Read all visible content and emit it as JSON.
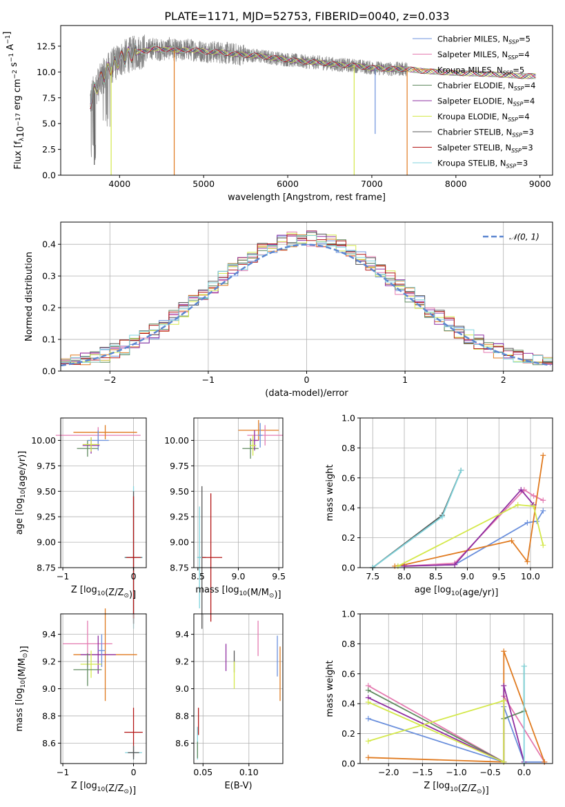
{
  "figure_title": "PLATE=1171, MJD=52753, FIBERID=0040, z=0.033",
  "colors": {
    "chabrier_miles": "#6a8fdc",
    "salpeter_miles": "#e47ab0",
    "kroupa_miles": "#e07a1f",
    "chabrier_elodie": "#5f8a5f",
    "salpeter_elodie": "#8e2ca0",
    "kroupa_elodie": "#d4e84a",
    "chabrier_stelib": "#555555",
    "salpeter_stelib": "#b31515",
    "kroupa_stelib": "#7fd3dc",
    "data": "#808080",
    "gaussian": "#5b86d0"
  },
  "chart_data": [
    {
      "id": "spectrum",
      "type": "line",
      "xlabel": "wavelength [Angstrom, rest frame]",
      "ylabel": "Flux [f_λ10^-17 erg cm^-2 s^-1 A^-1]",
      "xlim": [
        3300,
        9150
      ],
      "ylim": [
        0,
        14.5
      ],
      "xticks": [
        4000,
        5000,
        6000,
        7000,
        8000,
        9000
      ],
      "yticks": [
        0.0,
        2.5,
        5.0,
        7.5,
        10.0,
        12.5
      ],
      "ytick_labels": [
        "0.0",
        "2.5",
        "5.0",
        "7.5",
        "10.0",
        "12.5"
      ],
      "legend_position": "top-right",
      "legend": [
        {
          "label": "Chabrier MILES, N",
          "sub": "SSP",
          "suffix": "=5",
          "color": "#6a8fdc"
        },
        {
          "label": "Salpeter MILES, N",
          "sub": "SSP",
          "suffix": "=4",
          "color": "#e47ab0"
        },
        {
          "label": "Kroupa MILES, N",
          "sub": "SSP",
          "suffix": "=5",
          "color": "#e07a1f"
        },
        {
          "label": "Chabrier ELODIE, N",
          "sub": "SSP",
          "suffix": "=4",
          "color": "#5f8a5f"
        },
        {
          "label": "Salpeter ELODIE, N",
          "sub": "SSP",
          "suffix": "=4",
          "color": "#8e2ca0"
        },
        {
          "label": "Kroupa ELODIE, N",
          "sub": "SSP",
          "suffix": "=4",
          "color": "#d4e84a"
        },
        {
          "label": "Chabrier STELIB, N",
          "sub": "SSP",
          "suffix": "=3",
          "color": "#555555"
        },
        {
          "label": "Salpeter STELIB, N",
          "sub": "SSP",
          "suffix": "=3",
          "color": "#b31515"
        },
        {
          "label": "Kroupa STELIB, N",
          "sub": "SSP",
          "suffix": "=3",
          "color": "#7fd3dc"
        }
      ],
      "continuum": [
        [
          3650,
          7.2
        ],
        [
          3700,
          8.2
        ],
        [
          3800,
          9.5
        ],
        [
          3900,
          10.5
        ],
        [
          4000,
          11.2
        ],
        [
          4100,
          11.6
        ],
        [
          4200,
          11.9
        ],
        [
          4300,
          12.0
        ],
        [
          4400,
          12.3
        ],
        [
          4500,
          12.1
        ],
        [
          4600,
          12.3
        ],
        [
          4700,
          12.0
        ],
        [
          4800,
          12.2
        ],
        [
          5000,
          12.0
        ],
        [
          5200,
          11.9
        ],
        [
          5400,
          11.7
        ],
        [
          5600,
          11.6
        ],
        [
          5800,
          11.4
        ],
        [
          6000,
          11.2
        ],
        [
          6200,
          11.0
        ],
        [
          6400,
          10.9
        ],
        [
          6600,
          10.7
        ],
        [
          6800,
          10.6
        ],
        [
          7000,
          10.4
        ],
        [
          7200,
          10.3
        ],
        [
          7400,
          10.3
        ],
        [
          7600,
          10.1
        ],
        [
          7800,
          10.0
        ],
        [
          8000,
          9.9
        ],
        [
          8400,
          9.8
        ],
        [
          8800,
          9.6
        ],
        [
          9000,
          9.6
        ]
      ],
      "data_range": [
        3650,
        7420
      ],
      "drop_lines": [
        {
          "x": 4650,
          "y": 0.0,
          "color": "#e07a1f"
        },
        {
          "x": 3900,
          "y": 0.0,
          "color": "#d4e84a"
        },
        {
          "x": 6790,
          "y": 0.0,
          "color": "#d4e84a"
        },
        {
          "x": 7040,
          "y": 4.0,
          "color": "#6a8fdc"
        },
        {
          "x": 7420,
          "y": 0.0,
          "color": "#e07a1f"
        },
        {
          "x": 3700,
          "y": 1.0,
          "color": "#555555"
        }
      ]
    },
    {
      "id": "residuals",
      "type": "line",
      "xlabel": "(data-model)/error",
      "ylabel": "Normed distribution",
      "xlim": [
        -2.5,
        2.5
      ],
      "ylim": [
        0,
        0.47
      ],
      "xticks": [
        -2,
        -1,
        0,
        1,
        2
      ],
      "xtick_labels": [
        "−2",
        "−1",
        "0",
        "1",
        "2"
      ],
      "yticks": [
        0.0,
        0.1,
        0.2,
        0.3,
        0.4
      ],
      "ytick_labels": [
        "0.0",
        "0.1",
        "0.2",
        "0.3",
        "0.4"
      ],
      "grid": true,
      "legend_position": "top-right",
      "legend": [
        {
          "label": "𝒩(0, 1)",
          "color": "#5b86d0",
          "style": "dashed"
        }
      ],
      "bin_width": 0.1
    },
    {
      "id": "age_vs_Z",
      "type": "scatter",
      "xlabel": "Z [log10(Z/Z⊙)]",
      "ylabel": "age  [log10(age/yr)]",
      "xlim": [
        -1.03,
        0.18
      ],
      "ylim": [
        8.75,
        10.22
      ],
      "xticks": [
        -1,
        0
      ],
      "xtick_labels": [
        "−1",
        "0"
      ],
      "yticks": [
        8.75,
        9.0,
        9.25,
        9.5,
        9.75,
        10.0
      ],
      "ytick_labels": [
        "8.75",
        "9.00",
        "9.25",
        "9.50",
        "9.75",
        "10.00"
      ],
      "grid": true,
      "points": [
        {
          "x": -0.5,
          "y": 10.05,
          "xerr": 0.6,
          "yerr": 0.08,
          "color": "#e47ab0"
        },
        {
          "x": -0.4,
          "y": 10.08,
          "xerr": 0.45,
          "yerr": 0.07,
          "color": "#e07a1f"
        },
        {
          "x": -0.5,
          "y": 10.0,
          "xerr": 0.15,
          "yerr": 0.1,
          "color": "#6a8fdc"
        },
        {
          "x": -0.6,
          "y": 9.95,
          "xerr": 0.12,
          "yerr": 0.08,
          "color": "#8e2ca0"
        },
        {
          "x": -0.65,
          "y": 9.92,
          "xerr": 0.15,
          "yerr": 0.08,
          "color": "#5f8a5f"
        },
        {
          "x": -0.6,
          "y": 9.96,
          "xerr": 0.12,
          "yerr": 0.07,
          "color": "#d4e84a"
        },
        {
          "x": 0.0,
          "y": 8.85,
          "xerr": 0.13,
          "yerr": 0.7,
          "color": "#7fd3dc"
        },
        {
          "x": 0.0,
          "y": 8.85,
          "xerr": 0.12,
          "yerr": 0.65,
          "color": "#555555"
        },
        {
          "x": 0.0,
          "y": 8.85,
          "xerr": 0.1,
          "yerr": 0.6,
          "color": "#b31515"
        }
      ]
    },
    {
      "id": "age_vs_mass",
      "type": "scatter",
      "xlabel": "mass [log10(M/M⊙)]",
      "ylabel": "",
      "xlim": [
        8.45,
        9.55
      ],
      "ylim": [
        8.75,
        10.22
      ],
      "xticks": [
        8.5,
        9.0,
        9.5
      ],
      "xtick_labels": [
        "8.5",
        "9.0",
        "9.5"
      ],
      "yticks": [
        8.75,
        9.0,
        9.25,
        9.5,
        9.75,
        10.0
      ],
      "ytick_labels": [
        "8.75",
        "9.00",
        "9.25",
        "9.50",
        "9.75",
        "10.00"
      ],
      "grid": true,
      "points": [
        {
          "x": 9.25,
          "y": 10.1,
          "xerr": 0.25,
          "yerr": 0.1,
          "color": "#e07a1f"
        },
        {
          "x": 9.33,
          "y": 10.05,
          "xerr": 0.22,
          "yerr": 0.1,
          "color": "#e47ab0"
        },
        {
          "x": 9.27,
          "y": 10.05,
          "xerr": 0.03,
          "yerr": 0.12,
          "color": "#6a8fdc"
        },
        {
          "x": 9.15,
          "y": 9.92,
          "xerr": 0.1,
          "yerr": 0.1,
          "color": "#5f8a5f"
        },
        {
          "x": 9.2,
          "y": 10.0,
          "xerr": 0.05,
          "yerr": 0.1,
          "color": "#8e2ca0"
        },
        {
          "x": 9.18,
          "y": 9.95,
          "xerr": 0.04,
          "yerr": 0.1,
          "color": "#d4e84a"
        },
        {
          "x": 8.55,
          "y": 8.85,
          "xerr": 0.05,
          "yerr": 0.7,
          "color": "#555555"
        },
        {
          "x": 8.66,
          "y": 8.85,
          "xerr": 0.14,
          "yerr": 0.63,
          "color": "#b31515"
        },
        {
          "x": 8.52,
          "y": 8.85,
          "xerr": 0.03,
          "yerr": 0.5,
          "color": "#7fd3dc"
        }
      ]
    },
    {
      "id": "weight_vs_age",
      "type": "line",
      "xlabel": "age  [log10(age/yr)]",
      "ylabel": "mass weight",
      "xlim": [
        7.3,
        10.35
      ],
      "ylim": [
        0,
        1
      ],
      "xticks": [
        7.5,
        8.0,
        8.5,
        9.0,
        9.5,
        10.0
      ],
      "xtick_labels": [
        "7.5",
        "8.0",
        "8.5",
        "9.0",
        "9.5",
        "10.0"
      ],
      "yticks": [
        0.0,
        0.2,
        0.4,
        0.6,
        0.8,
        1.0
      ],
      "ytick_labels": [
        "0.0",
        "0.2",
        "0.4",
        "0.6",
        "0.8",
        "1.0"
      ],
      "grid": true,
      "series": [
        {
          "color": "#6a8fdc",
          "points": [
            [
              7.9,
              0.01
            ],
            [
              8.8,
              0.02
            ],
            [
              9.95,
              0.3
            ],
            [
              10.1,
              0.31
            ],
            [
              10.2,
              0.38
            ]
          ]
        },
        {
          "color": "#e47ab0",
          "points": [
            [
              8.0,
              0.01
            ],
            [
              8.8,
              0.03
            ],
            [
              9.9,
              0.52
            ],
            [
              10.05,
              0.48
            ],
            [
              10.2,
              0.45
            ]
          ]
        },
        {
          "color": "#e07a1f",
          "points": [
            [
              7.85,
              0.01
            ],
            [
              8.0,
              0.02
            ],
            [
              9.7,
              0.18
            ],
            [
              9.95,
              0.04
            ],
            [
              10.2,
              0.75
            ]
          ]
        },
        {
          "color": "#5f8a5f",
          "points": [
            [
              7.5,
              0.0
            ],
            [
              8.6,
              0.35
            ],
            [
              8.9,
              0.65
            ]
          ]
        },
        {
          "color": "#8e2ca0",
          "points": [
            [
              8.0,
              0.01
            ],
            [
              8.8,
              0.02
            ],
            [
              9.85,
              0.52
            ],
            [
              10.05,
              0.42
            ]
          ]
        },
        {
          "color": "#d4e84a",
          "points": [
            [
              7.9,
              0.01
            ],
            [
              9.8,
              0.42
            ],
            [
              10.05,
              0.41
            ],
            [
              10.2,
              0.15
            ]
          ]
        },
        {
          "color": "#555555",
          "points": [
            [
              7.5,
              0.0
            ],
            [
              8.6,
              0.35
            ],
            [
              8.9,
              0.65
            ]
          ]
        },
        {
          "color": "#7fd3dc",
          "points": [
            [
              7.5,
              0.0
            ],
            [
              8.6,
              0.34
            ],
            [
              8.9,
              0.65
            ]
          ]
        }
      ]
    },
    {
      "id": "mass_vs_Z",
      "type": "scatter",
      "xlabel": "Z [log10(Z/Z⊙)]",
      "ylabel": "mass [log10(M/M⊙)]",
      "xlim": [
        -1.03,
        0.18
      ],
      "ylim": [
        8.45,
        9.55
      ],
      "xticks": [
        -1,
        0
      ],
      "xtick_labels": [
        "−1",
        "0"
      ],
      "yticks": [
        8.6,
        8.8,
        9.0,
        9.2,
        9.4
      ],
      "ytick_labels": [
        "8.6",
        "8.8",
        "9.0",
        "9.2",
        "9.4"
      ],
      "grid": true,
      "points": [
        {
          "x": -0.65,
          "y": 9.33,
          "xerr": 0.35,
          "yerr": 0.17,
          "color": "#e47ab0"
        },
        {
          "x": -0.4,
          "y": 9.25,
          "xerr": 0.45,
          "yerr": 0.34,
          "color": "#e07a1f"
        },
        {
          "x": -0.5,
          "y": 9.25,
          "xerr": 0.25,
          "yerr": 0.14,
          "color": "#8e2ca0"
        },
        {
          "x": -0.45,
          "y": 9.28,
          "xerr": 0.05,
          "yerr": 0.12,
          "color": "#6a8fdc"
        },
        {
          "x": -0.6,
          "y": 9.18,
          "xerr": 0.15,
          "yerr": 0.1,
          "color": "#d4e84a"
        },
        {
          "x": -0.65,
          "y": 9.14,
          "xerr": 0.2,
          "yerr": 0.12,
          "color": "#5f8a5f"
        },
        {
          "x": 0.0,
          "y": 8.68,
          "xerr": 0.13,
          "yerr": 0.18,
          "color": "#b31515"
        },
        {
          "x": 0.0,
          "y": 8.53,
          "xerr": 0.12,
          "yerr": 0.05,
          "color": "#7fd3dc"
        },
        {
          "x": 0.0,
          "y": 8.53,
          "xerr": 0.08,
          "yerr": 0.05,
          "color": "#555555"
        }
      ]
    },
    {
      "id": "mass_vs_ebv",
      "type": "scatter",
      "xlabel": "E(B-V)",
      "ylabel": "",
      "xlim": [
        0.04,
        0.137
      ],
      "ylim": [
        8.45,
        9.55
      ],
      "xticks": [
        0.05,
        0.1
      ],
      "xtick_labels": [
        "0.05",
        "0.10"
      ],
      "yticks": [
        8.6,
        8.8,
        9.0,
        9.2,
        9.4
      ],
      "ytick_labels": [
        "8.6",
        "8.8",
        "9.0",
        "9.2",
        "9.4"
      ],
      "grid": true,
      "points": [
        {
          "x": 0.11,
          "y": 9.37,
          "yerr": 0.13,
          "color": "#e47ab0"
        },
        {
          "x": 0.134,
          "y": 9.11,
          "yerr": 0.2,
          "color": "#e07a1f"
        },
        {
          "x": 0.131,
          "y": 9.24,
          "yerr": 0.15,
          "color": "#6a8fdc"
        },
        {
          "x": 0.075,
          "y": 9.23,
          "yerr": 0.1,
          "color": "#8e2ca0"
        },
        {
          "x": 0.084,
          "y": 9.2,
          "yerr": 0.08,
          "color": "#555555"
        },
        {
          "x": 0.084,
          "y": 9.1,
          "yerr": 0.1,
          "color": "#d4e84a"
        },
        {
          "x": 0.045,
          "y": 8.76,
          "yerr": 0.1,
          "color": "#b31515"
        },
        {
          "x": 0.044,
          "y": 8.6,
          "yerr": 0.12,
          "color": "#7fd3dc"
        },
        {
          "x": 0.044,
          "y": 8.55,
          "yerr": 0.06,
          "color": "#5f8a5f"
        }
      ]
    },
    {
      "id": "weight_vs_Z",
      "type": "line",
      "xlabel": "Z [log10(Z/Z⊙)]",
      "ylabel": "mass weight",
      "xlim": [
        -2.42,
        0.42
      ],
      "ylim": [
        0,
        1
      ],
      "xticks": [
        -2.0,
        -1.5,
        -1.0,
        -0.5,
        0.0
      ],
      "xtick_labels": [
        "−2.0",
        "−1.5",
        "−1.0",
        "−0.5",
        "0.0"
      ],
      "yticks": [
        0.0,
        0.2,
        0.4,
        0.6,
        0.8,
        1.0
      ],
      "ytick_labels": [
        "0.0",
        "0.2",
        "0.4",
        "0.6",
        "0.8",
        "1.0"
      ],
      "grid": true,
      "series": [
        {
          "color": "#6a8fdc",
          "points": [
            [
              -2.3,
              0.3
            ],
            [
              -0.3,
              0.01
            ],
            [
              -0.3,
              0.38
            ],
            [
              0.0,
              0.01
            ],
            [
              0.3,
              0.01
            ]
          ]
        },
        {
          "color": "#e47ab0",
          "points": [
            [
              -2.3,
              0.52
            ],
            [
              -0.3,
              0.01
            ],
            [
              -0.3,
              0.45
            ],
            [
              0.3,
              0.01
            ]
          ]
        },
        {
          "color": "#e07a1f",
          "points": [
            [
              -2.3,
              0.04
            ],
            [
              -0.3,
              0.01
            ],
            [
              -0.3,
              0.75
            ],
            [
              0.3,
              0.01
            ]
          ]
        },
        {
          "color": "#5f8a5f",
          "points": [
            [
              -2.3,
              0.49
            ],
            [
              -0.3,
              0.01
            ],
            [
              -0.3,
              0.3
            ],
            [
              0.0,
              0.35
            ],
            [
              0.0,
              0.65
            ]
          ]
        },
        {
          "color": "#8e2ca0",
          "points": [
            [
              -2.3,
              0.44
            ],
            [
              -0.3,
              0.01
            ],
            [
              -0.3,
              0.52
            ],
            [
              0.0,
              0.01
            ]
          ]
        },
        {
          "color": "#d4e84a",
          "points": [
            [
              -2.3,
              0.41
            ],
            [
              -0.3,
              0.01
            ],
            [
              -0.3,
              0.42
            ],
            [
              -2.3,
              0.15
            ]
          ]
        },
        {
          "color": "#7fd3dc",
          "points": [
            [
              0.0,
              0.0
            ],
            [
              0.0,
              0.65
            ]
          ]
        }
      ]
    }
  ]
}
